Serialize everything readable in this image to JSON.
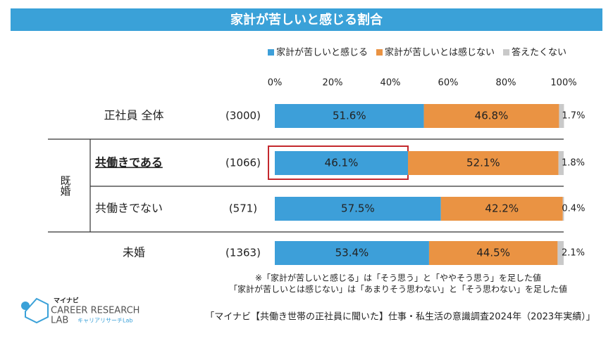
{
  "chart_data": {
    "type": "stacked-bar",
    "orientation": "horizontal",
    "title": "家計が苦しいと感じる割合",
    "categories": [
      "正社員 全体",
      "共働きである",
      "共働きでない",
      "未婚"
    ],
    "sample_sizes": [
      "(3000)",
      "(1066)",
      "(571)",
      "(1363)"
    ],
    "group_label": "既婚",
    "series": [
      {
        "name": "家計が苦しいと感じる",
        "color": "#3d9fd9",
        "values": [
          51.6,
          46.1,
          57.5,
          53.4
        ],
        "value_labels": [
          "51.6%",
          "46.1%",
          "57.5%",
          "53.4%"
        ]
      },
      {
        "name": "家計が苦しいとは感じない",
        "color": "#ea9343",
        "values": [
          46.8,
          52.1,
          42.2,
          44.5
        ],
        "value_labels": [
          "46.8%",
          "52.1%",
          "42.2%",
          "44.5%"
        ]
      },
      {
        "name": "答えたくない",
        "color": "#c9c9c9",
        "values": [
          1.7,
          1.8,
          0.4,
          2.1
        ],
        "value_labels": [
          "1.7%",
          "1.8%",
          "0.4%",
          "2.1%"
        ]
      }
    ],
    "xlim": [
      0,
      100
    ],
    "xticks": [
      {
        "value": 0,
        "label": "0%"
      },
      {
        "value": 20,
        "label": "20%"
      },
      {
        "value": 40,
        "label": "40%"
      },
      {
        "value": 60,
        "label": "60%"
      },
      {
        "value": 80,
        "label": "80%"
      },
      {
        "value": 100,
        "label": "100%"
      }
    ],
    "legend": "top",
    "notes": [
      "※「家計が苦しいと感じる」は「そう思う」と「ややそう思う」を足した値",
      "「家計が苦しいとは感じない」は「あまりそう思わない」と「そう思わない」を足した値"
    ],
    "source": "「マイナビ【共働き世帯の正社員に聞いた】仕事・私生活の意識調査2024年（2023年実績）」"
  },
  "logo": {
    "brand": "マイナビ",
    "line1": "CAREER RESEARCH",
    "line2": "LAB",
    "sub": "キャリアリサーチLab"
  }
}
